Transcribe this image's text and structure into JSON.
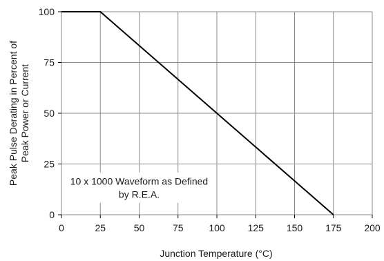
{
  "chart_data": {
    "type": "line",
    "title": "",
    "xlabel": "Junction Temperature (°C)",
    "ylabel_lines": [
      "Peak Pulse Derating in Percent of",
      "Peak Power or Current"
    ],
    "xlim": [
      0,
      200
    ],
    "ylim": [
      0,
      100
    ],
    "xticks": [
      0,
      25,
      50,
      75,
      100,
      125,
      150,
      175,
      200
    ],
    "yticks": [
      0,
      25,
      50,
      75,
      100
    ],
    "grid": true,
    "series": [
      {
        "x": [
          0,
          25,
          175
        ],
        "y": [
          100,
          100,
          0
        ]
      }
    ],
    "annotation_lines": [
      "10 x 1000 Waveform as Defined",
      "by R.E.A."
    ],
    "annotation_at": {
      "x": 50,
      "y": 12
    }
  },
  "colors": {
    "line": "#000000",
    "grid": "#8a8a8a",
    "text": "#1a1a1a",
    "background": "#ffffff"
  }
}
